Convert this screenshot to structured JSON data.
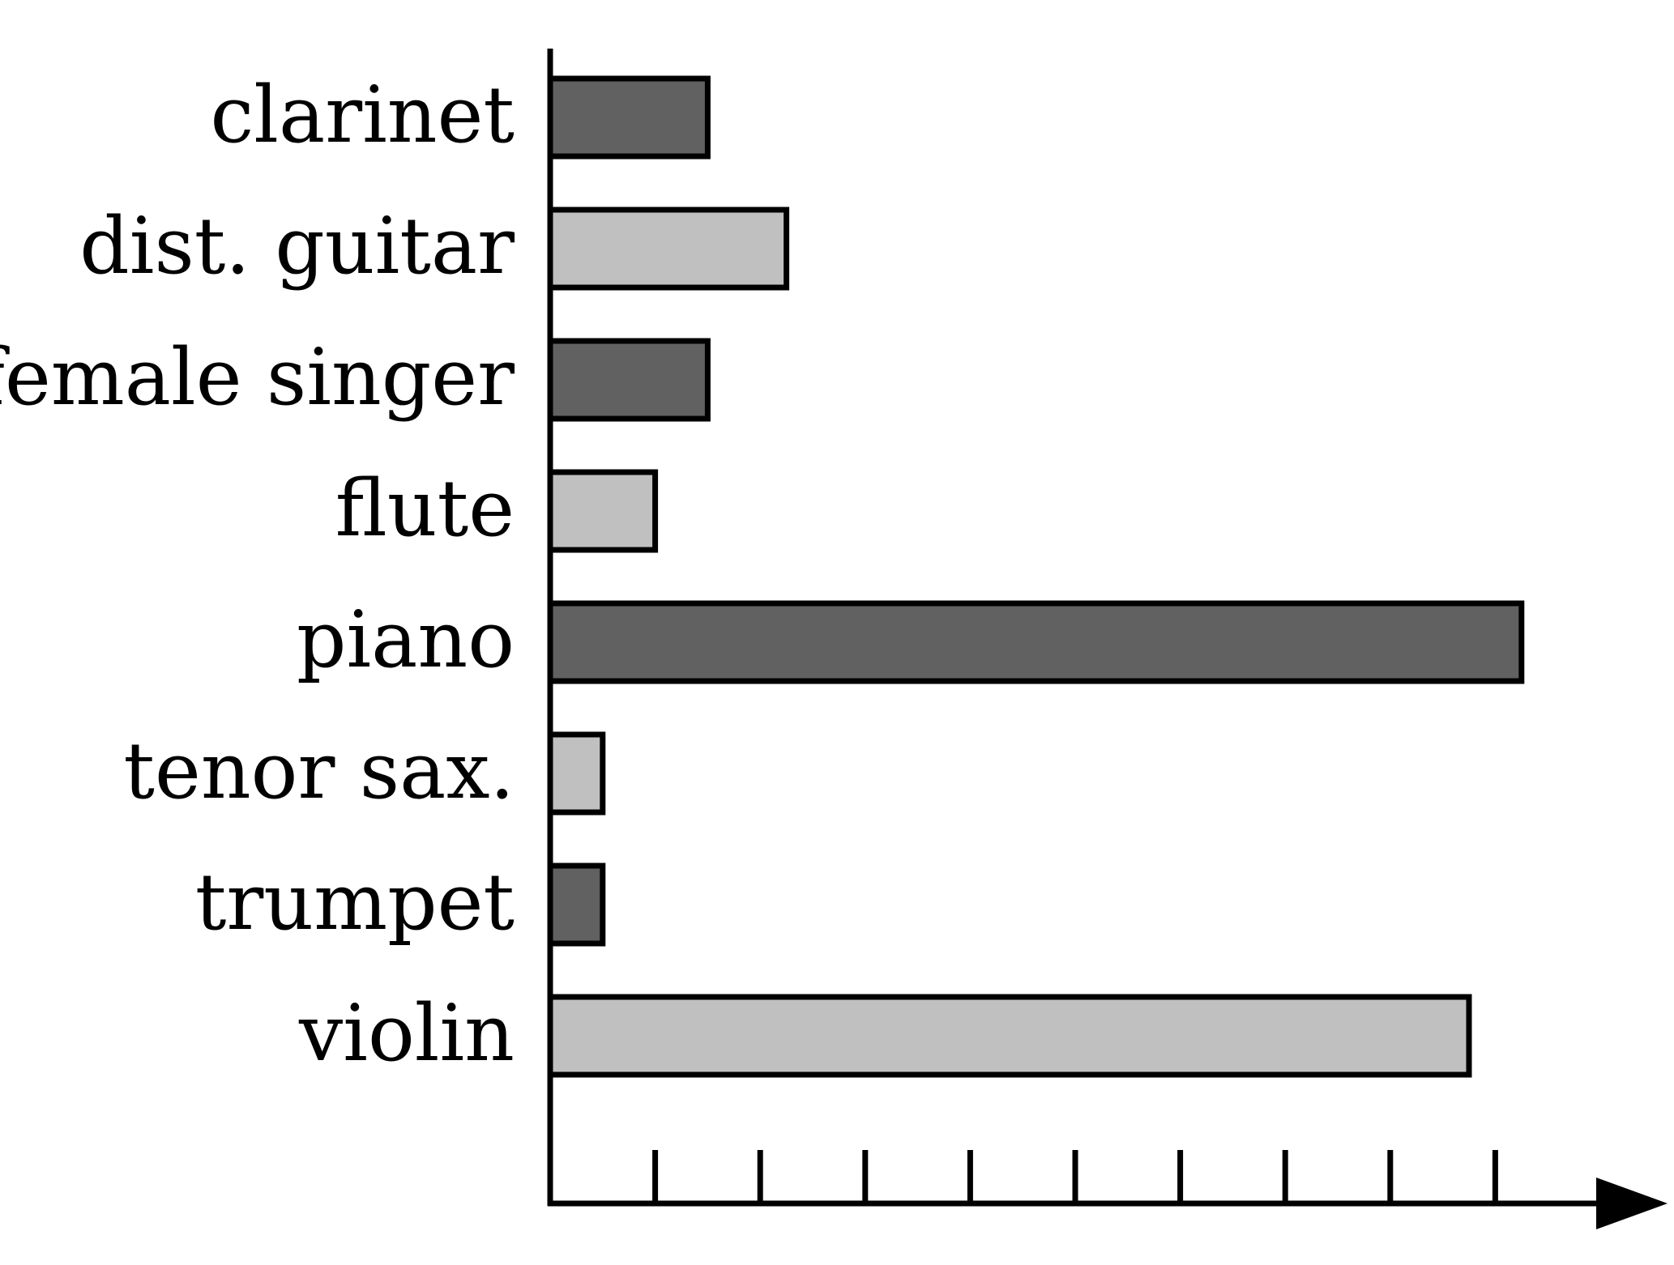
{
  "chart_data": {
    "type": "bar",
    "orientation": "horizontal",
    "title": "",
    "xlabel": "",
    "ylabel": "",
    "categories": [
      "clarinet",
      "dist. guitar",
      "female singer",
      "flute",
      "piano",
      "tenor sax.",
      "trumpet",
      "violin"
    ],
    "values": [
      1.5,
      2.25,
      1.5,
      1.0,
      9.25,
      0.5,
      0.5,
      8.75
    ],
    "xlim": [
      0,
      10.7
    ],
    "x_ticks": [
      1,
      2,
      3,
      4,
      5,
      6,
      7,
      8,
      9
    ],
    "tick_labels_shown": false,
    "grid": false,
    "legend": "none",
    "colors": {
      "dark_fill": "#616161",
      "light_fill": "#c0c0c0",
      "stroke": "#000000"
    }
  }
}
